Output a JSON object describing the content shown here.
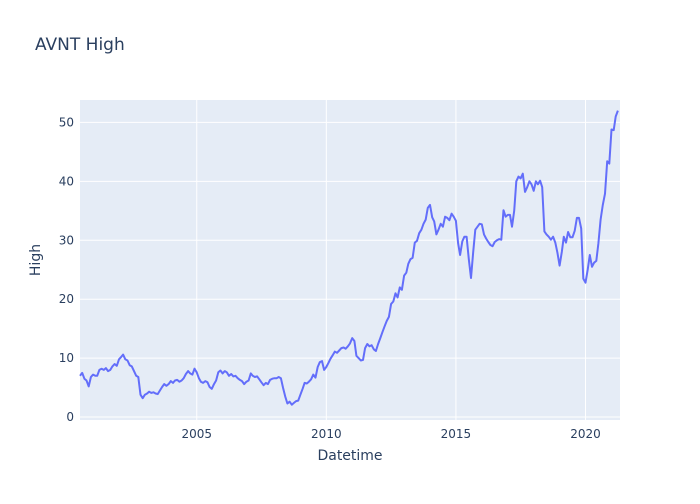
{
  "chart_data": {
    "type": "line",
    "title": "AVNT High",
    "xlabel": "Datetime",
    "ylabel": "High",
    "xlim": [
      "2000-07-01",
      "2021-05-01"
    ],
    "ylim": [
      -0.5,
      53.8
    ],
    "x_ticks": [
      "2005",
      "2010",
      "2015",
      "2020"
    ],
    "y_ticks": [
      0,
      10,
      20,
      30,
      40,
      50
    ],
    "grid": true,
    "colors": {
      "line": "#636efa",
      "plot_bg": "#e5ecf6",
      "grid": "#ffffff",
      "text": "#2a3f5f"
    },
    "series": [
      {
        "x": [
          "2000-07-01",
          "2000-08-01",
          "2000-09-01",
          "2000-10-01",
          "2000-11-01",
          "2000-12-01",
          "2001-01-01",
          "2001-02-01",
          "2001-03-01",
          "2001-04-01",
          "2001-05-01",
          "2001-06-01",
          "2001-07-01",
          "2001-08-01",
          "2001-09-01",
          "2001-10-01",
          "2001-11-01",
          "2001-12-01",
          "2002-01-01",
          "2002-02-01",
          "2002-03-01",
          "2002-04-01",
          "2002-05-01",
          "2002-06-01",
          "2002-07-01",
          "2002-08-01",
          "2002-09-01",
          "2002-10-01",
          "2002-11-01",
          "2002-12-01",
          "2003-01-01",
          "2003-02-01",
          "2003-03-01",
          "2003-04-01",
          "2003-05-01",
          "2003-06-01",
          "2003-07-01",
          "2003-08-01",
          "2003-09-01",
          "2003-10-01",
          "2003-11-01",
          "2003-12-01",
          "2004-01-01",
          "2004-02-01",
          "2004-03-01",
          "2004-04-01",
          "2004-05-01",
          "2004-06-01",
          "2004-07-01",
          "2004-08-01",
          "2004-09-01",
          "2004-10-01",
          "2004-11-01",
          "2004-12-01",
          "2005-01-01",
          "2005-02-01",
          "2005-03-01",
          "2005-04-01",
          "2005-05-01",
          "2005-06-01",
          "2005-07-01",
          "2005-08-01",
          "2005-09-01",
          "2005-10-01",
          "2005-11-01",
          "2005-12-01",
          "2006-01-01",
          "2006-02-01",
          "2006-03-01",
          "2006-04-01",
          "2006-05-01",
          "2006-06-01",
          "2006-07-01",
          "2006-08-01",
          "2006-09-01",
          "2006-10-01",
          "2006-11-01",
          "2006-12-01",
          "2007-01-01",
          "2007-02-01",
          "2007-03-01",
          "2007-04-01",
          "2007-05-01",
          "2007-06-01",
          "2007-07-01",
          "2007-08-01",
          "2007-09-01",
          "2007-10-01",
          "2007-11-01",
          "2007-12-01",
          "2008-01-01",
          "2008-02-01",
          "2008-03-01",
          "2008-04-01",
          "2008-05-01",
          "2008-06-01",
          "2008-07-01",
          "2008-08-01",
          "2008-09-01",
          "2008-10-01",
          "2008-11-01",
          "2008-12-01",
          "2009-01-01",
          "2009-02-01",
          "2009-03-01",
          "2009-04-01",
          "2009-05-01",
          "2009-06-01",
          "2009-07-01",
          "2009-08-01",
          "2009-09-01",
          "2009-10-01",
          "2009-11-01",
          "2009-12-01",
          "2010-01-01",
          "2010-02-01",
          "2010-03-01",
          "2010-04-01",
          "2010-05-01",
          "2010-06-01",
          "2010-07-01",
          "2010-08-01",
          "2010-09-01",
          "2010-10-01",
          "2010-11-01",
          "2010-12-01",
          "2011-01-01",
          "2011-02-01",
          "2011-03-01",
          "2011-04-01",
          "2011-05-01",
          "2011-06-01",
          "2011-07-01",
          "2011-08-01",
          "2011-09-01",
          "2011-10-01",
          "2011-11-01",
          "2011-12-01",
          "2012-01-01",
          "2012-02-01",
          "2012-03-01",
          "2012-04-01",
          "2012-05-01",
          "2012-06-01",
          "2012-07-01",
          "2012-08-01",
          "2012-09-01",
          "2012-10-01",
          "2012-11-01",
          "2012-12-01",
          "2013-01-01",
          "2013-02-01",
          "2013-03-01",
          "2013-04-01",
          "2013-05-01",
          "2013-06-01",
          "2013-07-01",
          "2013-08-01",
          "2013-09-01",
          "2013-10-01",
          "2013-11-01",
          "2013-12-01",
          "2014-01-01",
          "2014-02-01",
          "2014-03-01",
          "2014-04-01",
          "2014-05-01",
          "2014-06-01",
          "2014-07-01",
          "2014-08-01",
          "2014-09-01",
          "2014-10-01",
          "2014-11-01",
          "2014-12-01",
          "2015-01-01",
          "2015-02-01",
          "2015-03-01",
          "2015-04-01",
          "2015-05-01",
          "2015-06-01",
          "2015-07-01",
          "2015-08-01",
          "2015-09-01",
          "2015-10-01",
          "2015-11-01",
          "2015-12-01",
          "2016-01-01",
          "2016-02-01",
          "2016-03-01",
          "2016-04-01",
          "2016-05-01",
          "2016-06-01",
          "2016-07-01",
          "2016-08-01",
          "2016-09-01",
          "2016-10-01",
          "2016-11-01",
          "2016-12-01",
          "2017-01-01",
          "2017-02-01",
          "2017-03-01",
          "2017-04-01",
          "2017-05-01",
          "2017-06-01",
          "2017-07-01",
          "2017-08-01",
          "2017-09-01",
          "2017-10-01",
          "2017-11-01",
          "2017-12-01",
          "2018-01-01",
          "2018-02-01",
          "2018-03-01",
          "2018-04-01",
          "2018-05-01",
          "2018-06-01",
          "2018-07-01",
          "2018-08-01",
          "2018-09-01",
          "2018-10-01",
          "2018-11-01",
          "2018-12-01",
          "2019-01-01",
          "2019-02-01",
          "2019-03-01",
          "2019-04-01",
          "2019-05-01",
          "2019-06-01",
          "2019-07-01",
          "2019-08-01",
          "2019-09-01",
          "2019-10-01",
          "2019-11-01",
          "2019-12-01",
          "2020-01-01",
          "2020-02-01",
          "2020-03-01",
          "2020-04-01",
          "2020-05-01",
          "2020-06-01",
          "2020-07-01",
          "2020-08-01",
          "2020-09-01",
          "2020-10-01",
          "2020-11-01",
          "2020-12-01",
          "2021-01-01",
          "2021-02-01",
          "2021-03-01",
          "2021-04-01"
        ],
        "values": [
          7.0,
          7.5,
          6.5,
          6.2,
          5.2,
          6.8,
          7.2,
          7.0,
          7.0,
          8.0,
          8.2,
          8.0,
          8.3,
          7.8,
          8.0,
          8.6,
          9.0,
          8.7,
          9.8,
          10.2,
          10.6,
          9.8,
          9.6,
          8.8,
          8.6,
          7.8,
          7.0,
          6.8,
          3.8,
          3.2,
          3.8,
          4.0,
          4.3,
          4.1,
          4.2,
          4.0,
          3.9,
          4.5,
          5.1,
          5.6,
          5.3,
          5.6,
          6.1,
          5.8,
          6.2,
          6.3,
          6.0,
          6.2,
          6.6,
          7.3,
          7.8,
          7.4,
          7.2,
          8.2,
          7.6,
          6.6,
          6.0,
          5.8,
          6.1,
          5.9,
          5.1,
          4.8,
          5.6,
          6.2,
          7.6,
          7.9,
          7.4,
          7.8,
          7.6,
          7.0,
          7.3,
          6.9,
          7.0,
          6.6,
          6.3,
          6.1,
          5.6,
          6.0,
          6.2,
          7.4,
          7.0,
          6.8,
          6.9,
          6.4,
          5.9,
          5.4,
          5.8,
          5.6,
          6.3,
          6.5,
          6.6,
          6.6,
          6.8,
          6.6,
          5.0,
          3.5,
          2.3,
          2.6,
          2.1,
          2.4,
          2.7,
          2.8,
          3.8,
          4.8,
          5.8,
          5.7,
          6.0,
          6.4,
          7.2,
          6.7,
          8.5,
          9.3,
          9.5,
          8.0,
          8.5,
          9.2,
          9.9,
          10.5,
          11.1,
          10.9,
          11.3,
          11.7,
          11.8,
          11.6,
          12.0,
          12.5,
          13.4,
          12.9,
          10.4,
          10.0,
          9.6,
          9.7,
          11.7,
          12.4,
          12.0,
          12.2,
          11.5,
          11.2,
          12.4,
          13.4,
          14.4,
          15.4,
          16.3,
          17.0,
          19.2,
          19.6,
          21.0,
          20.3,
          22.0,
          21.6,
          24.0,
          24.5,
          26.0,
          26.8,
          27.0,
          29.6,
          29.9,
          31.2,
          31.8,
          32.8,
          33.5,
          35.5,
          36.0,
          33.9,
          33.2,
          31.0,
          31.8,
          32.8,
          32.3,
          34.0,
          33.8,
          33.4,
          34.5,
          34.0,
          33.3,
          29.5,
          27.5,
          29.8,
          30.6,
          30.6,
          26.8,
          23.6,
          28.0,
          31.8,
          32.3,
          32.8,
          32.7,
          31.0,
          30.3,
          29.7,
          29.2,
          29.0,
          29.7,
          30.0,
          30.2,
          30.1,
          35.1,
          34.0,
          34.3,
          34.3,
          32.3,
          35.0,
          40.0,
          40.8,
          40.5,
          41.3,
          38.2,
          39.0,
          40.0,
          39.5,
          38.4,
          40.0,
          39.5,
          40.1,
          39.0,
          31.5,
          31.0,
          30.6,
          30.1,
          30.6,
          29.6,
          27.9,
          25.7,
          28.0,
          30.6,
          29.6,
          31.4,
          30.5,
          30.5,
          31.6,
          33.8,
          33.8,
          32.0,
          23.5,
          22.8,
          25.0,
          27.5,
          25.5,
          26.2,
          26.5,
          29.5,
          33.5,
          36.0,
          37.9,
          43.4,
          43.0,
          48.8,
          48.7,
          51.0,
          52.0
        ]
      }
    ]
  }
}
